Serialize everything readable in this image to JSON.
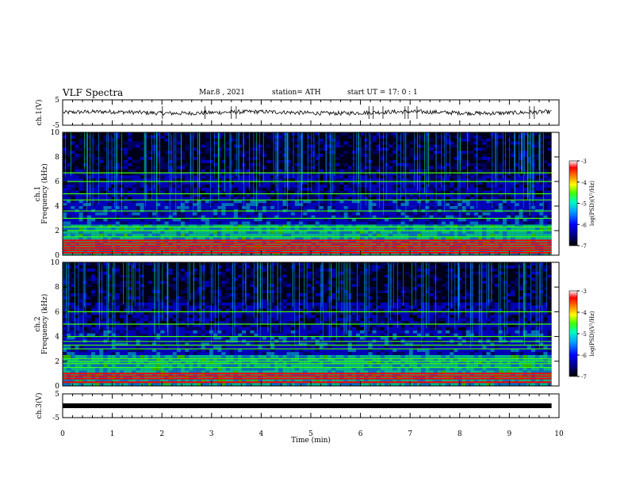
{
  "header": {
    "title": "VLF Spectra",
    "date": "Mar.8 , 2021",
    "station": "station= ATH",
    "start": "start UT = 17: 0 : 1"
  },
  "colors": {
    "colormap": [
      "#000000",
      "#000080",
      "#0000ff",
      "#00a0ff",
      "#00ffc0",
      "#40ff00",
      "#ffff00",
      "#ff8000",
      "#ff0000",
      "#ffffff"
    ],
    "trace": "#000000"
  },
  "chart_data": [
    {
      "type": "line",
      "panel": "ch1-waveform",
      "ylabel": "ch.1(V)",
      "ylim": [
        -5,
        5
      ],
      "yticks": [
        "5",
        "-5"
      ],
      "xlim": [
        0,
        10
      ],
      "series": [
        {
          "values_description_level_V": 0
        }
      ]
    },
    {
      "type": "heatmap",
      "panel": "ch1-spectrogram",
      "ylabel_line1": "ch.1",
      "ylabel_line2": "Frequency (kHz)",
      "ylim": [
        0,
        10
      ],
      "yticks": [
        "0",
        "2",
        "4",
        "6",
        "8",
        "10"
      ],
      "xlim": [
        0,
        9.85
      ],
      "colorbar": {
        "label": "log(PSD)(V²/Hz)",
        "range": [
          -7,
          -3
        ],
        "ticks": [
          "-3",
          "-4",
          "-5",
          "-6",
          "-7"
        ]
      },
      "bands_kHz": [
        0.2,
        0.4,
        0.6,
        0.8,
        1.0,
        1.2,
        1.5,
        2.0,
        2.3,
        3.0,
        3.6,
        4.5,
        5.0,
        6.0,
        6.7
      ]
    },
    {
      "type": "heatmap",
      "panel": "ch2-spectrogram",
      "ylabel_line1": "ch.2",
      "ylabel_line2": "Frequency (kHz)",
      "ylim": [
        0,
        10
      ],
      "yticks": [
        "0",
        "2",
        "4",
        "6",
        "8",
        "10"
      ],
      "xlim": [
        0,
        9.85
      ],
      "colorbar": {
        "label": "log(PSD)(V²/Hz)",
        "range": [
          -7,
          -3
        ],
        "ticks": [
          "-3",
          "-4",
          "-5",
          "-6",
          "-7"
        ]
      },
      "bands_kHz": [
        0.3,
        0.6,
        0.8,
        1.0,
        1.5,
        1.8,
        2.0,
        2.2,
        3.0,
        3.3,
        3.6,
        4.0,
        5.0,
        6.0
      ]
    },
    {
      "type": "line",
      "panel": "ch3-waveform",
      "ylabel": "ch.3(V)",
      "ylim": [
        -5,
        5
      ],
      "yticks": [
        "5",
        "-5"
      ],
      "xlim": [
        0,
        10
      ],
      "series": [
        {
          "values_description_level_V": 0
        }
      ]
    }
  ],
  "xaxis": {
    "label": "Time (min)",
    "ticks": [
      "0",
      "1",
      "2",
      "3",
      "4",
      "5",
      "6",
      "7",
      "8",
      "9",
      "10"
    ]
  }
}
